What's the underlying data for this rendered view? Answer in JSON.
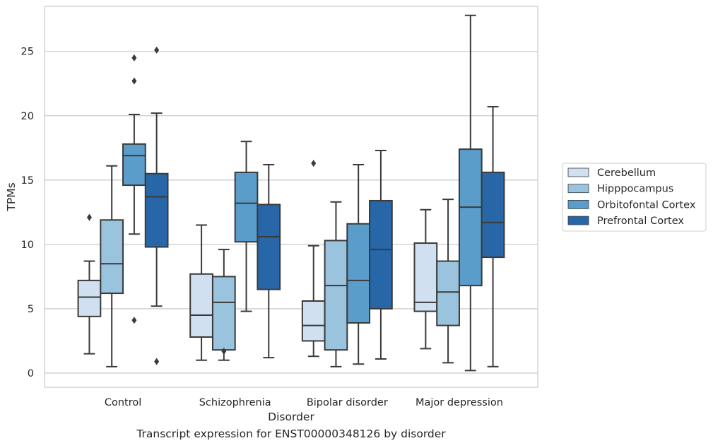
{
  "caption": "Transcript expression for ENST00000348126 by disorder",
  "chart_data": {
    "type": "box",
    "xlabel": "Disorder",
    "ylabel": "TPMs",
    "ylim": [
      -1.1,
      28.5
    ],
    "yticks": [
      0,
      5,
      10,
      15,
      20,
      25
    ],
    "grid": "horizontal",
    "legend_position": "right",
    "categories": [
      "Control",
      "Schizophrenia",
      "Bipolar disorder",
      "Major depression"
    ],
    "series": [
      {
        "name": "Cerebellum",
        "color": "#d0e0f0",
        "boxes": [
          {
            "whislo": 1.5,
            "q1": 4.4,
            "med": 5.9,
            "q3": 7.2,
            "whishi": 8.7,
            "fliers": [
              12.1
            ]
          },
          {
            "whislo": 1.0,
            "q1": 2.8,
            "med": 4.5,
            "q3": 7.7,
            "whishi": 11.5,
            "fliers": []
          },
          {
            "whislo": 1.3,
            "q1": 2.5,
            "med": 3.7,
            "q3": 5.6,
            "whishi": 9.9,
            "fliers": [
              16.3
            ]
          },
          {
            "whislo": 1.9,
            "q1": 4.8,
            "med": 5.5,
            "q3": 10.1,
            "whishi": 12.7,
            "fliers": []
          }
        ]
      },
      {
        "name": "Hipppocampus",
        "color": "#9ac3de",
        "boxes": [
          {
            "whislo": 0.5,
            "q1": 6.2,
            "med": 8.5,
            "q3": 11.9,
            "whishi": 16.1,
            "fliers": []
          },
          {
            "whislo": 1.0,
            "q1": 1.8,
            "med": 5.5,
            "q3": 7.5,
            "whishi": 9.6,
            "fliers": [
              1.7
            ]
          },
          {
            "whislo": 0.5,
            "q1": 1.8,
            "med": 6.8,
            "q3": 10.3,
            "whishi": 13.3,
            "fliers": []
          },
          {
            "whislo": 0.8,
            "q1": 3.7,
            "med": 6.3,
            "q3": 8.7,
            "whishi": 13.5,
            "fliers": []
          }
        ]
      },
      {
        "name": "Orbitofontal Cortex",
        "color": "#5a9dcb",
        "boxes": [
          {
            "whislo": 10.8,
            "q1": 14.6,
            "med": 16.9,
            "q3": 17.8,
            "whishi": 20.1,
            "fliers": [
              4.1,
              22.7,
              24.5
            ]
          },
          {
            "whislo": 4.8,
            "q1": 10.2,
            "med": 13.2,
            "q3": 15.6,
            "whishi": 18.0,
            "fliers": []
          },
          {
            "whislo": 0.7,
            "q1": 3.9,
            "med": 7.2,
            "q3": 11.6,
            "whishi": 16.2,
            "fliers": []
          },
          {
            "whislo": 0.2,
            "q1": 6.8,
            "med": 12.9,
            "q3": 17.4,
            "whishi": 27.8,
            "fliers": []
          }
        ]
      },
      {
        "name": "Prefrontal Cortex",
        "color": "#2767a8",
        "boxes": [
          {
            "whislo": 5.2,
            "q1": 9.8,
            "med": 13.7,
            "q3": 15.5,
            "whishi": 20.2,
            "fliers": [
              0.9,
              25.1
            ]
          },
          {
            "whislo": 1.2,
            "q1": 6.5,
            "med": 10.6,
            "q3": 13.1,
            "whishi": 16.2,
            "fliers": []
          },
          {
            "whislo": 1.1,
            "q1": 5.0,
            "med": 9.6,
            "q3": 13.4,
            "whishi": 17.3,
            "fliers": []
          },
          {
            "whislo": 0.5,
            "q1": 9.0,
            "med": 11.7,
            "q3": 15.6,
            "whishi": 20.7,
            "fliers": []
          }
        ]
      }
    ]
  }
}
